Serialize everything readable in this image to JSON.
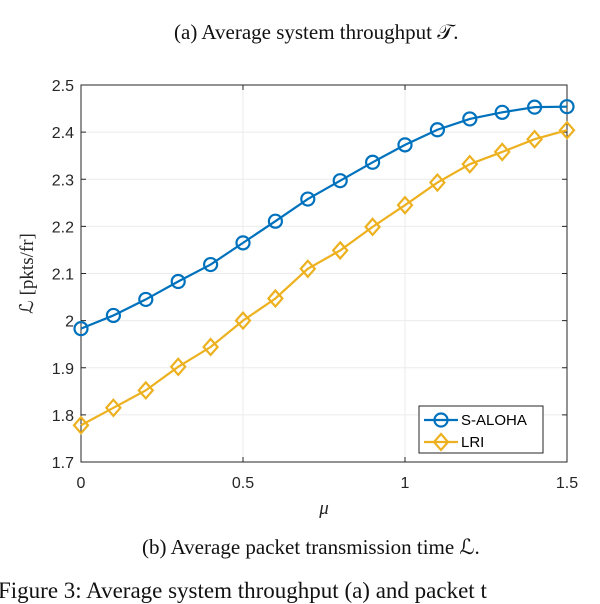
{
  "captions": {
    "top": "(a) Average system throughput 𝒯.",
    "bottom": "(b) Average packet transmission time ℒ.",
    "figure": "Figure 3: Average system throughput (a) and packet t"
  },
  "chart_data": {
    "type": "line",
    "xlabel": "μ",
    "ylabel": "ℒ [pkts/fr]",
    "xlim": [
      0,
      1.5
    ],
    "ylim": [
      1.7,
      2.5
    ],
    "xticks": [
      "0",
      "0.5",
      "1",
      "1.5"
    ],
    "yticks": [
      "1.7",
      "1.8",
      "1.9",
      "2",
      "2.1",
      "2.2",
      "2.3",
      "2.4",
      "2.5"
    ],
    "grid": true,
    "legend_position": "bottom-right",
    "x": [
      0,
      0.1,
      0.2,
      0.3,
      0.4,
      0.5,
      0.6,
      0.7,
      0.8,
      0.9,
      1.0,
      1.1,
      1.2,
      1.3,
      1.4,
      1.5
    ],
    "series": [
      {
        "name": "S-ALOHA",
        "color": "#0072BD",
        "marker": "circle",
        "values": [
          1.983,
          2.011,
          2.045,
          2.083,
          2.119,
          2.165,
          2.211,
          2.258,
          2.297,
          2.336,
          2.373,
          2.405,
          2.428,
          2.442,
          2.453,
          2.454
        ]
      },
      {
        "name": "LRI",
        "color": "#EDB120",
        "marker": "diamond",
        "values": [
          1.778,
          1.815,
          1.852,
          1.902,
          1.944,
          2.0,
          2.047,
          2.11,
          2.149,
          2.199,
          2.245,
          2.293,
          2.332,
          2.358,
          2.385,
          2.404
        ]
      }
    ]
  }
}
